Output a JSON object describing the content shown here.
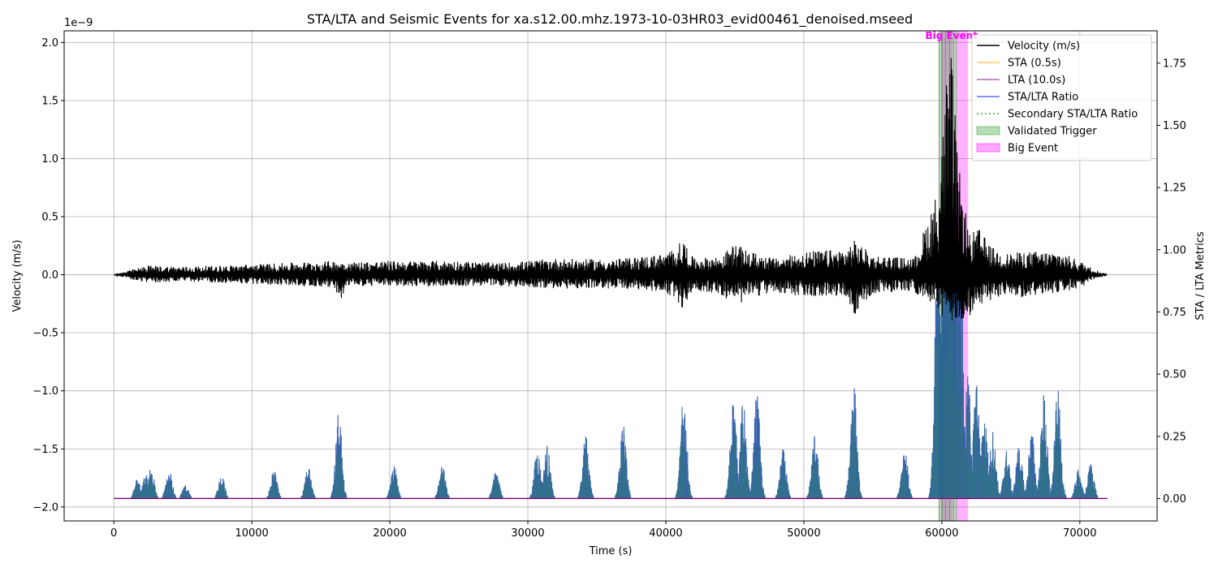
{
  "chart_data": {
    "type": "line",
    "title": "STA/LTA and Seismic Events for xa.s12.00.mhz.1973-10-03HR03_evid00461_denoised.mseed",
    "xlabel": "Time (s)",
    "ylabel_left": "Velocity (m/s)",
    "ylabel_right": "STA / LTA Metrics",
    "left_offset_label": "1e−9",
    "xlim": [
      -3600,
      75600
    ],
    "ylim_left": [
      -2.12,
      2.1
    ],
    "ylim_right": [
      -0.09,
      1.88
    ],
    "x_ticks": [
      0,
      10000,
      20000,
      30000,
      40000,
      50000,
      60000,
      70000
    ],
    "x_tick_labels": [
      "0",
      "10000",
      "20000",
      "30000",
      "40000",
      "50000",
      "60000",
      "70000"
    ],
    "y_left_ticks": [
      -2.0,
      -1.5,
      -1.0,
      -0.5,
      0.0,
      0.5,
      1.0,
      1.5,
      2.0
    ],
    "y_left_tick_labels": [
      "−2.0",
      "−1.5",
      "−1.0",
      "−0.5",
      "0.0",
      "0.5",
      "1.0",
      "1.5",
      "2.0"
    ],
    "y_right_ticks": [
      0.0,
      0.25,
      0.5,
      0.75,
      1.0,
      1.25,
      1.5,
      1.75
    ],
    "y_right_tick_labels": [
      "0.00",
      "0.25",
      "0.50",
      "0.75",
      "1.00",
      "1.25",
      "1.50",
      "1.75"
    ],
    "grid": true,
    "legend_position": "top-right",
    "legend": [
      {
        "label": "Velocity (m/s)",
        "style": "line",
        "color": "#000000"
      },
      {
        "label": "STA (0.5s)",
        "style": "line",
        "color": "#ffa500"
      },
      {
        "label": "LTA (10.0s)",
        "style": "line",
        "color": "#800080"
      },
      {
        "label": "STA/LTA Ratio",
        "style": "line",
        "color": "#0000ff"
      },
      {
        "label": "Secondary STA/LTA Ratio",
        "style": "dotted",
        "color": "#008000"
      },
      {
        "label": "Validated Trigger",
        "style": "patch",
        "color": "#2ca02c"
      },
      {
        "label": "Big Event",
        "style": "patch",
        "color": "#ff00ff"
      }
    ],
    "annotation": {
      "text": "Big Event",
      "x": 60700,
      "color": "#ff00ff"
    },
    "series": [
      {
        "name": "Velocity (m/s)",
        "axis": "left",
        "color": "#000000",
        "x_range": [
          0,
          72000
        ],
        "envelope": {
          "x": [
            0,
            1500,
            2500,
            5000,
            8000,
            12000,
            16000,
            16300,
            17000,
            20000,
            25000,
            28000,
            32000,
            36000,
            40000,
            41300,
            42000,
            44000,
            45000,
            46000,
            48000,
            50000,
            53000,
            53700,
            55000,
            58000,
            59800,
            60300,
            60700,
            61200,
            62000,
            62700,
            63500,
            64500,
            66000,
            68500,
            70000,
            71000,
            72000
          ],
          "upper": [
            0.0,
            0.05,
            0.08,
            0.07,
            0.08,
            0.1,
            0.12,
            0.12,
            0.11,
            0.12,
            0.12,
            0.1,
            0.14,
            0.13,
            0.18,
            0.3,
            0.14,
            0.16,
            0.27,
            0.2,
            0.14,
            0.2,
            0.22,
            0.3,
            0.17,
            0.14,
            0.78,
            1.65,
            1.9,
            0.95,
            0.35,
            0.4,
            0.25,
            0.18,
            0.2,
            0.2,
            0.12,
            0.05,
            0.0
          ],
          "lower": [
            0.0,
            -0.05,
            -0.07,
            -0.06,
            -0.07,
            -0.09,
            -0.11,
            -0.25,
            -0.1,
            -0.1,
            -0.1,
            -0.1,
            -0.12,
            -0.12,
            -0.15,
            -0.3,
            -0.13,
            -0.17,
            -0.28,
            -0.2,
            -0.15,
            -0.2,
            -0.18,
            -0.35,
            -0.16,
            -0.15,
            -0.3,
            -0.45,
            -0.45,
            -0.4,
            -0.4,
            -0.28,
            -0.22,
            -0.18,
            -0.2,
            -0.15,
            -0.12,
            -0.05,
            0.0
          ]
        }
      },
      {
        "name": "STA/LTA Ratio",
        "axis": "right",
        "color": "#0000ff",
        "peaks": {
          "x": [
            1700,
            2300,
            2700,
            4000,
            5200,
            7800,
            11600,
            14100,
            16300,
            20300,
            23800,
            27700,
            30700,
            31400,
            34200,
            36900,
            41300,
            44900,
            45600,
            46600,
            48500,
            50800,
            53600,
            57300,
            59700,
            60000,
            60300,
            60600,
            60900,
            61300,
            61900,
            62500,
            63100,
            63700,
            64700,
            65600,
            66500,
            67400,
            68400,
            69900,
            70800
          ],
          "y": [
            0.08,
            0.1,
            0.13,
            0.12,
            0.06,
            0.1,
            0.12,
            0.14,
            0.36,
            0.14,
            0.14,
            0.12,
            0.21,
            0.22,
            0.26,
            0.32,
            0.43,
            0.42,
            0.4,
            0.43,
            0.2,
            0.27,
            0.5,
            0.22,
            1.0,
            1.4,
            1.55,
            1.6,
            1.3,
            1.25,
            0.5,
            0.48,
            0.35,
            0.28,
            0.2,
            0.22,
            0.28,
            0.43,
            0.44,
            0.12,
            0.15
          ]
        }
      },
      {
        "name": "Secondary STA/LTA Ratio",
        "axis": "right",
        "color": "#2e7d6e",
        "peaks": "follows STA/LTA Ratio"
      },
      {
        "name": "STA (0.5s)",
        "axis": "right",
        "color": "#ffa500",
        "baseline": 0.0
      },
      {
        "name": "LTA (10.0s)",
        "axis": "right",
        "color": "#800080",
        "baseline": 0.0
      }
    ],
    "validated_triggers": [
      [
        59800,
        60000
      ],
      [
        60000,
        60200
      ],
      [
        60250,
        60500
      ],
      [
        60550,
        60800
      ],
      [
        60850,
        61100
      ]
    ],
    "big_events": [
      [
        60000,
        60800
      ],
      [
        61000,
        61900
      ]
    ]
  }
}
